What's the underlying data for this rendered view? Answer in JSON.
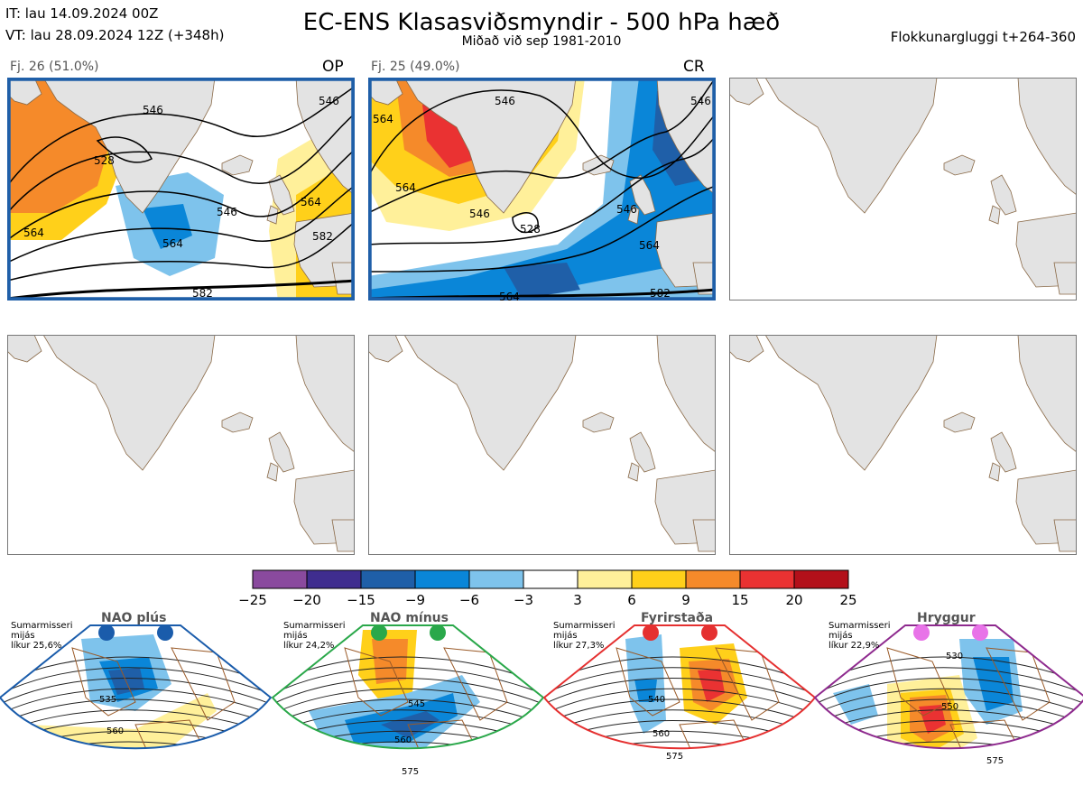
{
  "header": {
    "it_line": "IT: lau 14.09.2024 00Z",
    "vt_line": "VT: lau 28.09.2024 12Z  (+348h)",
    "title": "EC-ENS Klasasviðsmyndir - 500 hPa hæð",
    "subtitle": "Miðað við sep 1981-2010",
    "window": "Flokkunargluggi t+264-360"
  },
  "panels": [
    {
      "count_label": "Fj. 26 (51.0%)",
      "type_label": "OP",
      "frame_color": "#1f5fa8",
      "contour_labels": [
        "546",
        "528",
        "546",
        "564",
        "546",
        "564",
        "582",
        "564",
        "582"
      ]
    },
    {
      "count_label": "Fj. 25 (49.0%)",
      "type_label": "CR",
      "frame_color": "#1f5fa8",
      "contour_labels": [
        "564",
        "546",
        "564",
        "546",
        "528",
        "546",
        "564",
        "546",
        "564",
        "582"
      ]
    }
  ],
  "colorbar": {
    "ticks": [
      "−25",
      "−20",
      "−15",
      "−9",
      "−6",
      "−3",
      "3",
      "6",
      "9",
      "15",
      "20",
      "25"
    ],
    "colors": [
      "#8a4a9e",
      "#3f2d8f",
      "#1f5fa8",
      "#0a86d8",
      "#7ec3ec",
      "#ffffff",
      "#fff09a",
      "#ffd01a",
      "#f58a2a",
      "#ea3232",
      "#b3101a"
    ]
  },
  "regimes": [
    {
      "title": "NAO plús",
      "note": [
        "Sumarmisseri",
        "mijás",
        "líkur 25,6%"
      ],
      "dot_color": "#1a5cab",
      "frame_color": "#1a5cab",
      "labels": [
        "535",
        "560"
      ]
    },
    {
      "title": "NAO mínus",
      "note": [
        "Sumarmisseri",
        "mijás",
        "líkur 24,2%"
      ],
      "dot_color": "#2aa84a",
      "frame_color": "#2aa84a",
      "labels": [
        "545",
        "560",
        "575"
      ]
    },
    {
      "title": "Fyrirstaða",
      "note": [
        "Sumarmisseri",
        "mijás",
        "líkur 27,3%"
      ],
      "dot_color": "#e53030",
      "frame_color": "#e53030",
      "labels": [
        "540",
        "560",
        "575"
      ]
    },
    {
      "title": "Hryggur",
      "note": [
        "Sumarmisseri",
        "mijás",
        "líkur 22,9%"
      ],
      "dot_color": "#e873e8",
      "frame_color": "#8e2a8e",
      "labels": [
        "530",
        "550",
        "575"
      ]
    }
  ]
}
